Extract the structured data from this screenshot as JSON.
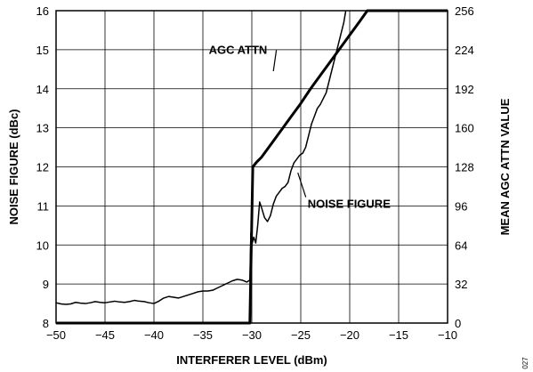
{
  "chart_data": {
    "type": "line",
    "xlabel": "INTERFERER LEVEL (dBm)",
    "ylabel_left": "NOISE FIGURE (dBc)",
    "ylabel_right": "MEAN AGC ATTN VALUE",
    "xlim": [
      -50,
      -10
    ],
    "ylim_left": [
      8,
      16
    ],
    "ylim_right": [
      0,
      256
    ],
    "x_ticks": [
      -50,
      -45,
      -40,
      -35,
      -30,
      -25,
      -20,
      -15,
      -10
    ],
    "x_tick_labels": [
      "−50",
      "−45",
      "−40",
      "−35",
      "−30",
      "−25",
      "−20",
      "−15",
      "−10"
    ],
    "y_left_ticks": [
      8,
      9,
      10,
      11,
      12,
      13,
      14,
      15,
      16
    ],
    "y_left_tick_labels": [
      "8",
      "9",
      "10",
      "11",
      "12",
      "13",
      "14",
      "15",
      "16"
    ],
    "y_right_ticks": [
      0,
      32,
      64,
      96,
      128,
      160,
      192,
      224,
      256
    ],
    "y_right_tick_labels": [
      "0",
      "32",
      "64",
      "96",
      "128",
      "160",
      "192",
      "224",
      "256"
    ],
    "grid": true,
    "series": [
      {
        "name": "AGC ATTN",
        "axis": "right",
        "stroke_width": 3,
        "points": [
          [
            -50,
            0
          ],
          [
            -30.2,
            0
          ],
          [
            -29.9,
            128
          ],
          [
            -29.5,
            132
          ],
          [
            -29,
            136
          ],
          [
            -28,
            147
          ],
          [
            -27,
            158
          ],
          [
            -26,
            169
          ],
          [
            -25,
            180
          ],
          [
            -24,
            192
          ],
          [
            -23,
            203
          ],
          [
            -22,
            214
          ],
          [
            -21,
            225
          ],
          [
            -20,
            236
          ],
          [
            -19,
            247
          ],
          [
            -18.2,
            256
          ],
          [
            -10,
            256
          ]
        ]
      },
      {
        "name": "NOISE FIGURE",
        "axis": "left",
        "stroke_width": 1.5,
        "points": [
          [
            -50,
            8.52
          ],
          [
            -49.5,
            8.49
          ],
          [
            -49,
            8.48
          ],
          [
            -48.5,
            8.49
          ],
          [
            -48,
            8.53
          ],
          [
            -47.5,
            8.51
          ],
          [
            -47,
            8.5
          ],
          [
            -46.5,
            8.52
          ],
          [
            -46,
            8.55
          ],
          [
            -45.5,
            8.53
          ],
          [
            -45,
            8.52
          ],
          [
            -44.5,
            8.54
          ],
          [
            -44,
            8.56
          ],
          [
            -43.5,
            8.54
          ],
          [
            -43,
            8.53
          ],
          [
            -42.5,
            8.55
          ],
          [
            -42,
            8.58
          ],
          [
            -41.5,
            8.56
          ],
          [
            -41,
            8.55
          ],
          [
            -40.5,
            8.52
          ],
          [
            -40,
            8.5
          ],
          [
            -39.5,
            8.56
          ],
          [
            -39,
            8.64
          ],
          [
            -38.5,
            8.68
          ],
          [
            -38,
            8.66
          ],
          [
            -37.5,
            8.64
          ],
          [
            -37,
            8.68
          ],
          [
            -36.5,
            8.72
          ],
          [
            -36,
            8.76
          ],
          [
            -35.5,
            8.8
          ],
          [
            -35,
            8.82
          ],
          [
            -34.5,
            8.82
          ],
          [
            -34,
            8.84
          ],
          [
            -33.5,
            8.9
          ],
          [
            -33,
            8.96
          ],
          [
            -32.5,
            9.02
          ],
          [
            -32,
            9.08
          ],
          [
            -31.5,
            9.12
          ],
          [
            -31,
            9.1
          ],
          [
            -30.5,
            9.05
          ],
          [
            -30.2,
            9.1
          ],
          [
            -30.1,
            10.3
          ],
          [
            -30,
            10
          ],
          [
            -29.8,
            10.2
          ],
          [
            -29.6,
            10.05
          ],
          [
            -29.4,
            10.5
          ],
          [
            -29.2,
            11.1
          ],
          [
            -29,
            10.95
          ],
          [
            -28.7,
            10.7
          ],
          [
            -28.4,
            10.6
          ],
          [
            -28.1,
            10.75
          ],
          [
            -27.8,
            11.05
          ],
          [
            -27.5,
            11.25
          ],
          [
            -27.2,
            11.35
          ],
          [
            -26.9,
            11.45
          ],
          [
            -26.6,
            11.5
          ],
          [
            -26.3,
            11.6
          ],
          [
            -26,
            11.9
          ],
          [
            -25.7,
            12.1
          ],
          [
            -25.4,
            12.2
          ],
          [
            -25.1,
            12.3
          ],
          [
            -24.8,
            12.35
          ],
          [
            -24.5,
            12.5
          ],
          [
            -24.2,
            12.8
          ],
          [
            -23.9,
            13.1
          ],
          [
            -23.6,
            13.3
          ],
          [
            -23.3,
            13.5
          ],
          [
            -23,
            13.6
          ],
          [
            -22.7,
            13.75
          ],
          [
            -22.4,
            13.9
          ],
          [
            -22.1,
            14.2
          ],
          [
            -21.8,
            14.5
          ],
          [
            -21.5,
            14.8
          ],
          [
            -21.2,
            15.1
          ],
          [
            -20.9,
            15.4
          ],
          [
            -20.6,
            15.7
          ],
          [
            -20.4,
            16
          ]
        ]
      }
    ],
    "annotations": [
      {
        "text": "AGC ATTN",
        "x": -34.4,
        "y_left": 14.9,
        "arrow_to": [
          -27.8,
          14.45
        ]
      },
      {
        "text": "NOISE FIGURE",
        "x": -24.3,
        "y_left": 10.95,
        "arrow_to": [
          -25.3,
          11.85
        ]
      }
    ],
    "figure_id": "027"
  }
}
